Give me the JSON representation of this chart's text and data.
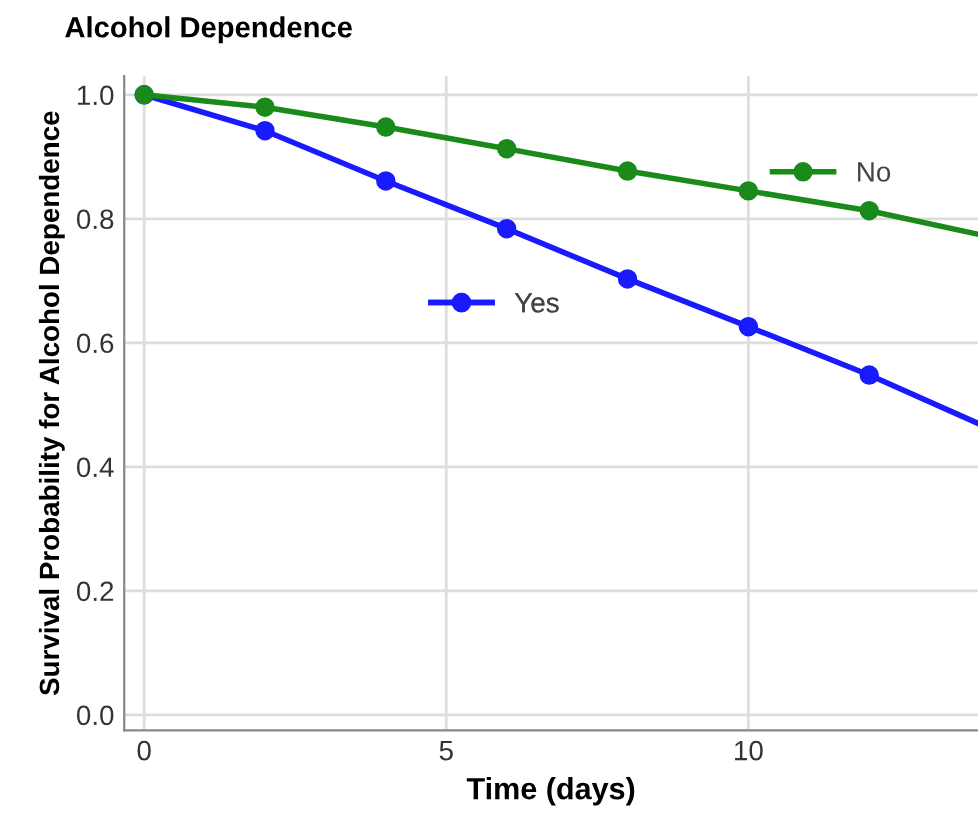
{
  "chart_data": {
    "type": "line",
    "title": "Alcohol Dependence",
    "xlabel": "Time (days)",
    "ylabel": "Survival Probability for Alcohol Dependence",
    "x": [
      0,
      2,
      4,
      6,
      8,
      10,
      12,
      13.8
    ],
    "series": [
      {
        "name": "No",
        "color": "#1a8a1a",
        "values": [
          1.0,
          0.98,
          0.948,
          0.913,
          0.877,
          0.845,
          0.813,
          0.775
        ]
      },
      {
        "name": "Yes",
        "color": "#1a1aff",
        "values": [
          1.0,
          0.942,
          0.861,
          0.784,
          0.703,
          0.626,
          0.548,
          0.47
        ]
      }
    ],
    "xlim": [
      -0.33,
      13.8
    ],
    "ylim": [
      -0.025,
      1.03
    ],
    "xticks": [
      0,
      5,
      10
    ],
    "yticks": [
      {
        "value": 0,
        "label": "0.0"
      },
      {
        "value": 0.2,
        "label": "0.2"
      },
      {
        "value": 0.4,
        "label": "0.4"
      },
      {
        "value": 0.6,
        "label": "0.6"
      },
      {
        "value": 0.8,
        "label": "0.8"
      },
      {
        "value": 1,
        "label": "1.0"
      }
    ],
    "grid": true,
    "legend": "right",
    "marker": "circle",
    "line_style": "solid"
  }
}
